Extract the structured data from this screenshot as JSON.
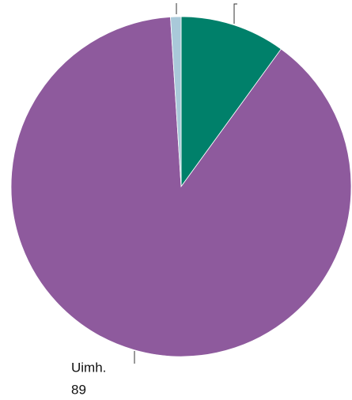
{
  "chart_data": {
    "type": "pie",
    "categories": [
      null,
      "Uimh.",
      null
    ],
    "values": [
      10,
      89,
      1
    ],
    "colors": [
      "#00806a",
      "#8e5a9d",
      "#a9c9d9"
    ]
  }
}
